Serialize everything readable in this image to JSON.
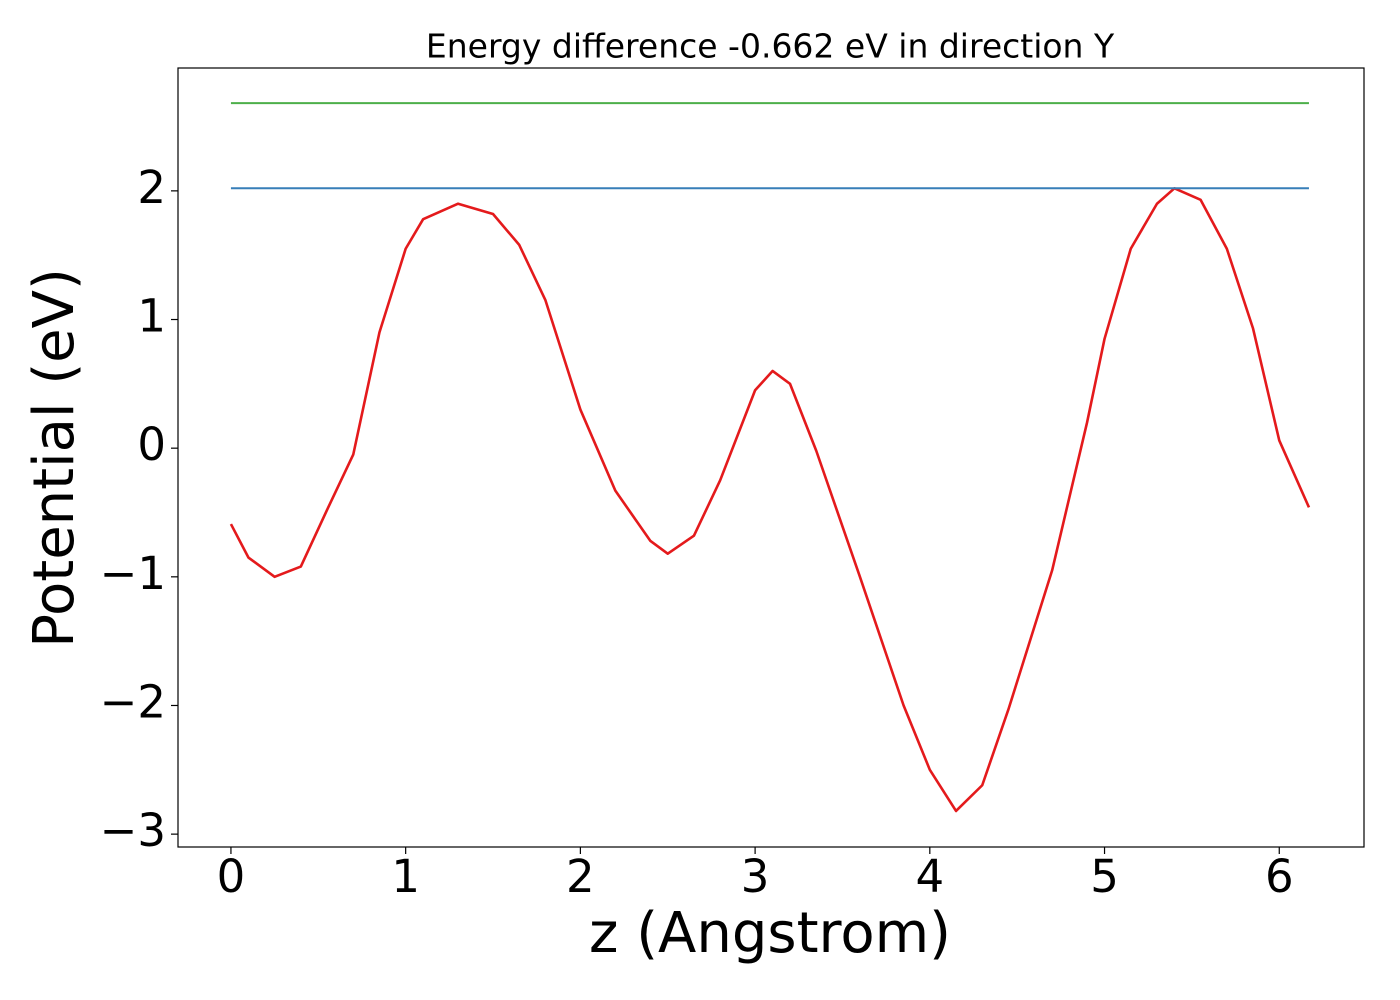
{
  "chart_data": {
    "type": "line",
    "title": "Energy difference -0.662 eV in direction Y",
    "xlabel": "z (Angstrom)",
    "ylabel": "Potential (eV)",
    "xlim": [
      -0.303,
      6.485
    ],
    "ylim": [
      -3.1,
      2.955
    ],
    "xticks": [
      0,
      1,
      2,
      3,
      4,
      5,
      6
    ],
    "yticks": [
      {
        "value": -3,
        "label": "−3"
      },
      {
        "value": -2,
        "label": "−2"
      },
      {
        "value": -1,
        "label": "−1"
      },
      0,
      1,
      2
    ],
    "grid": false,
    "series": [
      {
        "color": "#e41a1c",
        "x": [
          0,
          0.1,
          0.25,
          0.4,
          0.55,
          0.7,
          0.85,
          1.0,
          1.1,
          1.3,
          1.5,
          1.65,
          1.8,
          2.0,
          2.2,
          2.4,
          2.5,
          2.65,
          2.8,
          3.0,
          3.1,
          3.2,
          3.35,
          3.6,
          3.85,
          4.0,
          4.15,
          4.3,
          4.45,
          4.7,
          4.9,
          5.0,
          5.15,
          5.3,
          5.4,
          5.55,
          5.7,
          5.85,
          6.0,
          6.17
        ],
        "values": [
          -0.59,
          -0.85,
          -1.0,
          -0.92,
          -0.48,
          -0.05,
          0.9,
          1.55,
          1.78,
          1.9,
          1.82,
          1.58,
          1.15,
          0.3,
          -0.33,
          -0.72,
          -0.82,
          -0.68,
          -0.25,
          0.45,
          0.6,
          0.5,
          -0.02,
          -1.0,
          -2.0,
          -2.5,
          -2.82,
          -2.62,
          -2.03,
          -0.95,
          0.2,
          0.85,
          1.55,
          1.9,
          2.02,
          1.93,
          1.55,
          0.93,
          0.06,
          -0.46
        ]
      },
      {
        "color": "#377eb8",
        "x": [
          0,
          6.17
        ],
        "values": [
          2.02,
          2.02
        ]
      },
      {
        "color": "#4daf4a",
        "x": [
          0,
          6.17
        ],
        "values": [
          2.682,
          2.682
        ]
      }
    ]
  }
}
